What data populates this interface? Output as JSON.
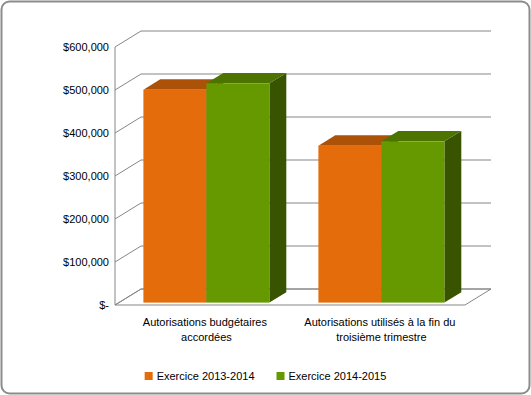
{
  "chart_data": {
    "type": "bar",
    "categories": [
      "Autorisations budgétaires accordées",
      "Autorisations utilisés à la fin du troisième trimestre"
    ],
    "series": [
      {
        "name": "Exercice 2013-2014",
        "color": "#e46c0a",
        "values": [
          495000,
          365000
        ]
      },
      {
        "name": "Exercice 2014-2015",
        "color": "#669900",
        "values": [
          510000,
          375000
        ]
      }
    ],
    "ylim": [
      0,
      600000
    ],
    "yticks": [
      {
        "value": 0,
        "label": "$-"
      },
      {
        "value": 100000,
        "label": "$100,000"
      },
      {
        "value": 200000,
        "label": "$200,000"
      },
      {
        "value": 300000,
        "label": "$300,000"
      },
      {
        "value": 400000,
        "label": "$400,000"
      },
      {
        "value": 500000,
        "label": "$500,000"
      },
      {
        "value": 600000,
        "label": "$600,000"
      }
    ],
    "grid": true,
    "legend": "bottom"
  }
}
